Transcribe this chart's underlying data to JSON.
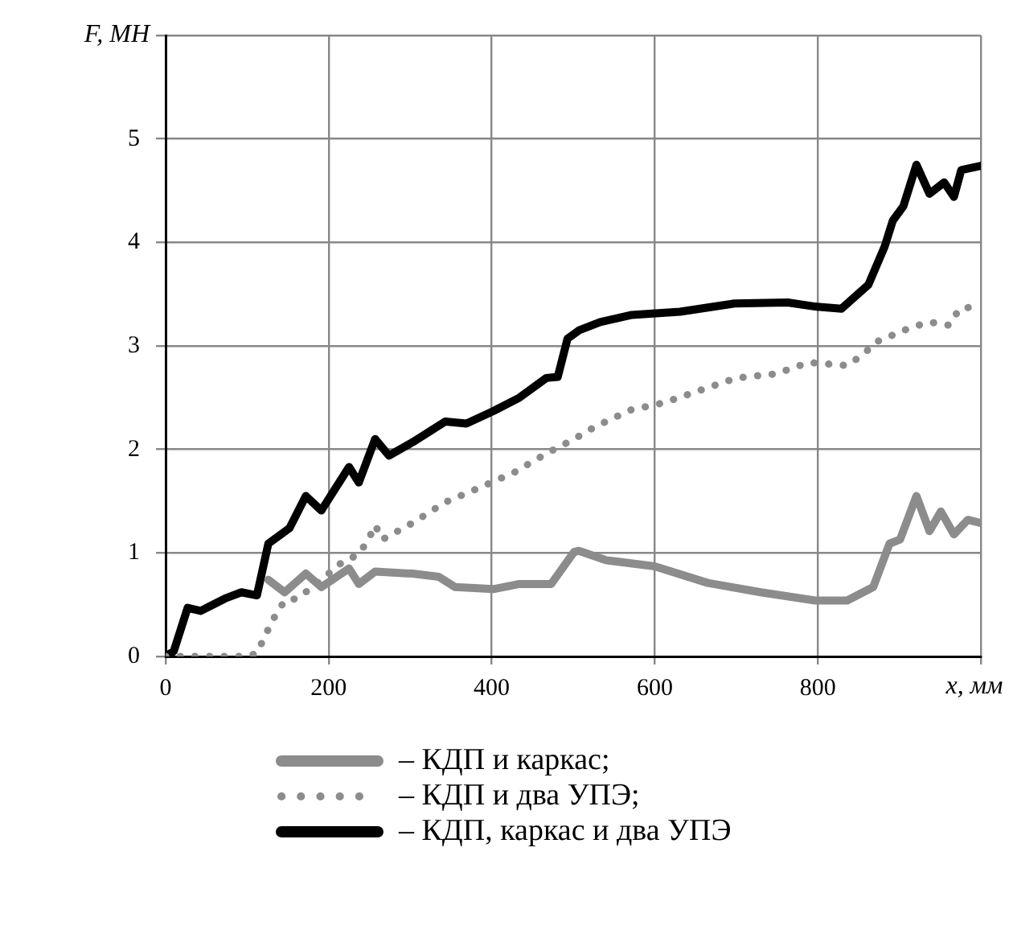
{
  "chart_data": {
    "type": "line",
    "xlabel": "x, мм",
    "ylabel": "F, МН",
    "xlim": [
      0,
      1000
    ],
    "ylim": [
      0,
      6
    ],
    "xticks": [
      0,
      200,
      400,
      600,
      800,
      {
        "value": 1000,
        "label": null
      }
    ],
    "yticks": [
      0,
      1,
      2,
      3,
      4,
      5,
      {
        "value": 6,
        "label": null
      }
    ],
    "grid": true,
    "legend": "bottom",
    "marker": "none",
    "series": [
      {
        "name": "– КДП и каркас;",
        "color": "#8c8c8c",
        "line_style": "solid",
        "x": [
          126,
          146,
          172,
          191,
          225,
          237,
          257,
          303,
          335,
          355,
          402,
          434,
          473,
          501,
          507,
          540,
          600,
          665,
          730,
          797,
          836,
          868,
          888,
          901,
          921,
          937,
          951,
          967,
          984,
          1000
        ],
        "values": [
          0.74,
          0.62,
          0.8,
          0.67,
          0.85,
          0.7,
          0.82,
          0.8,
          0.77,
          0.67,
          0.65,
          0.7,
          0.7,
          1.01,
          1.02,
          0.93,
          0.87,
          0.71,
          0.62,
          0.54,
          0.54,
          0.67,
          1.09,
          1.13,
          1.55,
          1.21,
          1.4,
          1.18,
          1.32,
          1.29
        ]
      },
      {
        "name": "– КДП и два УПЭ;",
        "color": "#8c8c8c",
        "line_style": "dotted",
        "x": [
          0,
          50,
          100,
          112,
          122,
          132,
          146,
          162,
          191,
          215,
          235,
          247,
          257,
          266,
          303,
          343,
          385,
          428,
          467,
          501,
          527,
          570,
          611,
          659,
          700,
          748,
          789,
          836,
          856,
          872,
          915,
          937,
          961,
          974,
          994
        ],
        "values": [
          0,
          0,
          0,
          0.03,
          0.2,
          0.36,
          0.54,
          0.56,
          0.74,
          0.9,
          0.98,
          1.1,
          1.27,
          1.13,
          1.29,
          1.49,
          1.63,
          1.78,
          1.96,
          2.1,
          2.22,
          2.38,
          2.45,
          2.58,
          2.69,
          2.73,
          2.84,
          2.81,
          2.92,
          3.04,
          3.18,
          3.23,
          3.2,
          3.36,
          3.38
        ]
      },
      {
        "name": "– КДП, каркас и два УПЭ",
        "color": "#000000",
        "line_style": "solid",
        "x": [
          0,
          10,
          27,
          43,
          73,
          93,
          112,
          126,
          152,
          172,
          191,
          225,
          237,
          257,
          274,
          303,
          343,
          369,
          402,
          434,
          467,
          481,
          493,
          507,
          533,
          572,
          631,
          698,
          763,
          797,
          829,
          862,
          882,
          892,
          905,
          921,
          937,
          955,
          967,
          976,
          1000
        ],
        "values": [
          0,
          0.05,
          0.47,
          0.44,
          0.56,
          0.62,
          0.59,
          1.09,
          1.24,
          1.55,
          1.41,
          1.83,
          1.68,
          2.1,
          1.94,
          2.07,
          2.27,
          2.25,
          2.37,
          2.5,
          2.69,
          2.7,
          3.07,
          3.15,
          3.23,
          3.3,
          3.33,
          3.41,
          3.42,
          3.38,
          3.36,
          3.59,
          3.96,
          4.21,
          4.35,
          4.75,
          4.47,
          4.58,
          4.44,
          4.7,
          4.74
        ]
      }
    ]
  }
}
